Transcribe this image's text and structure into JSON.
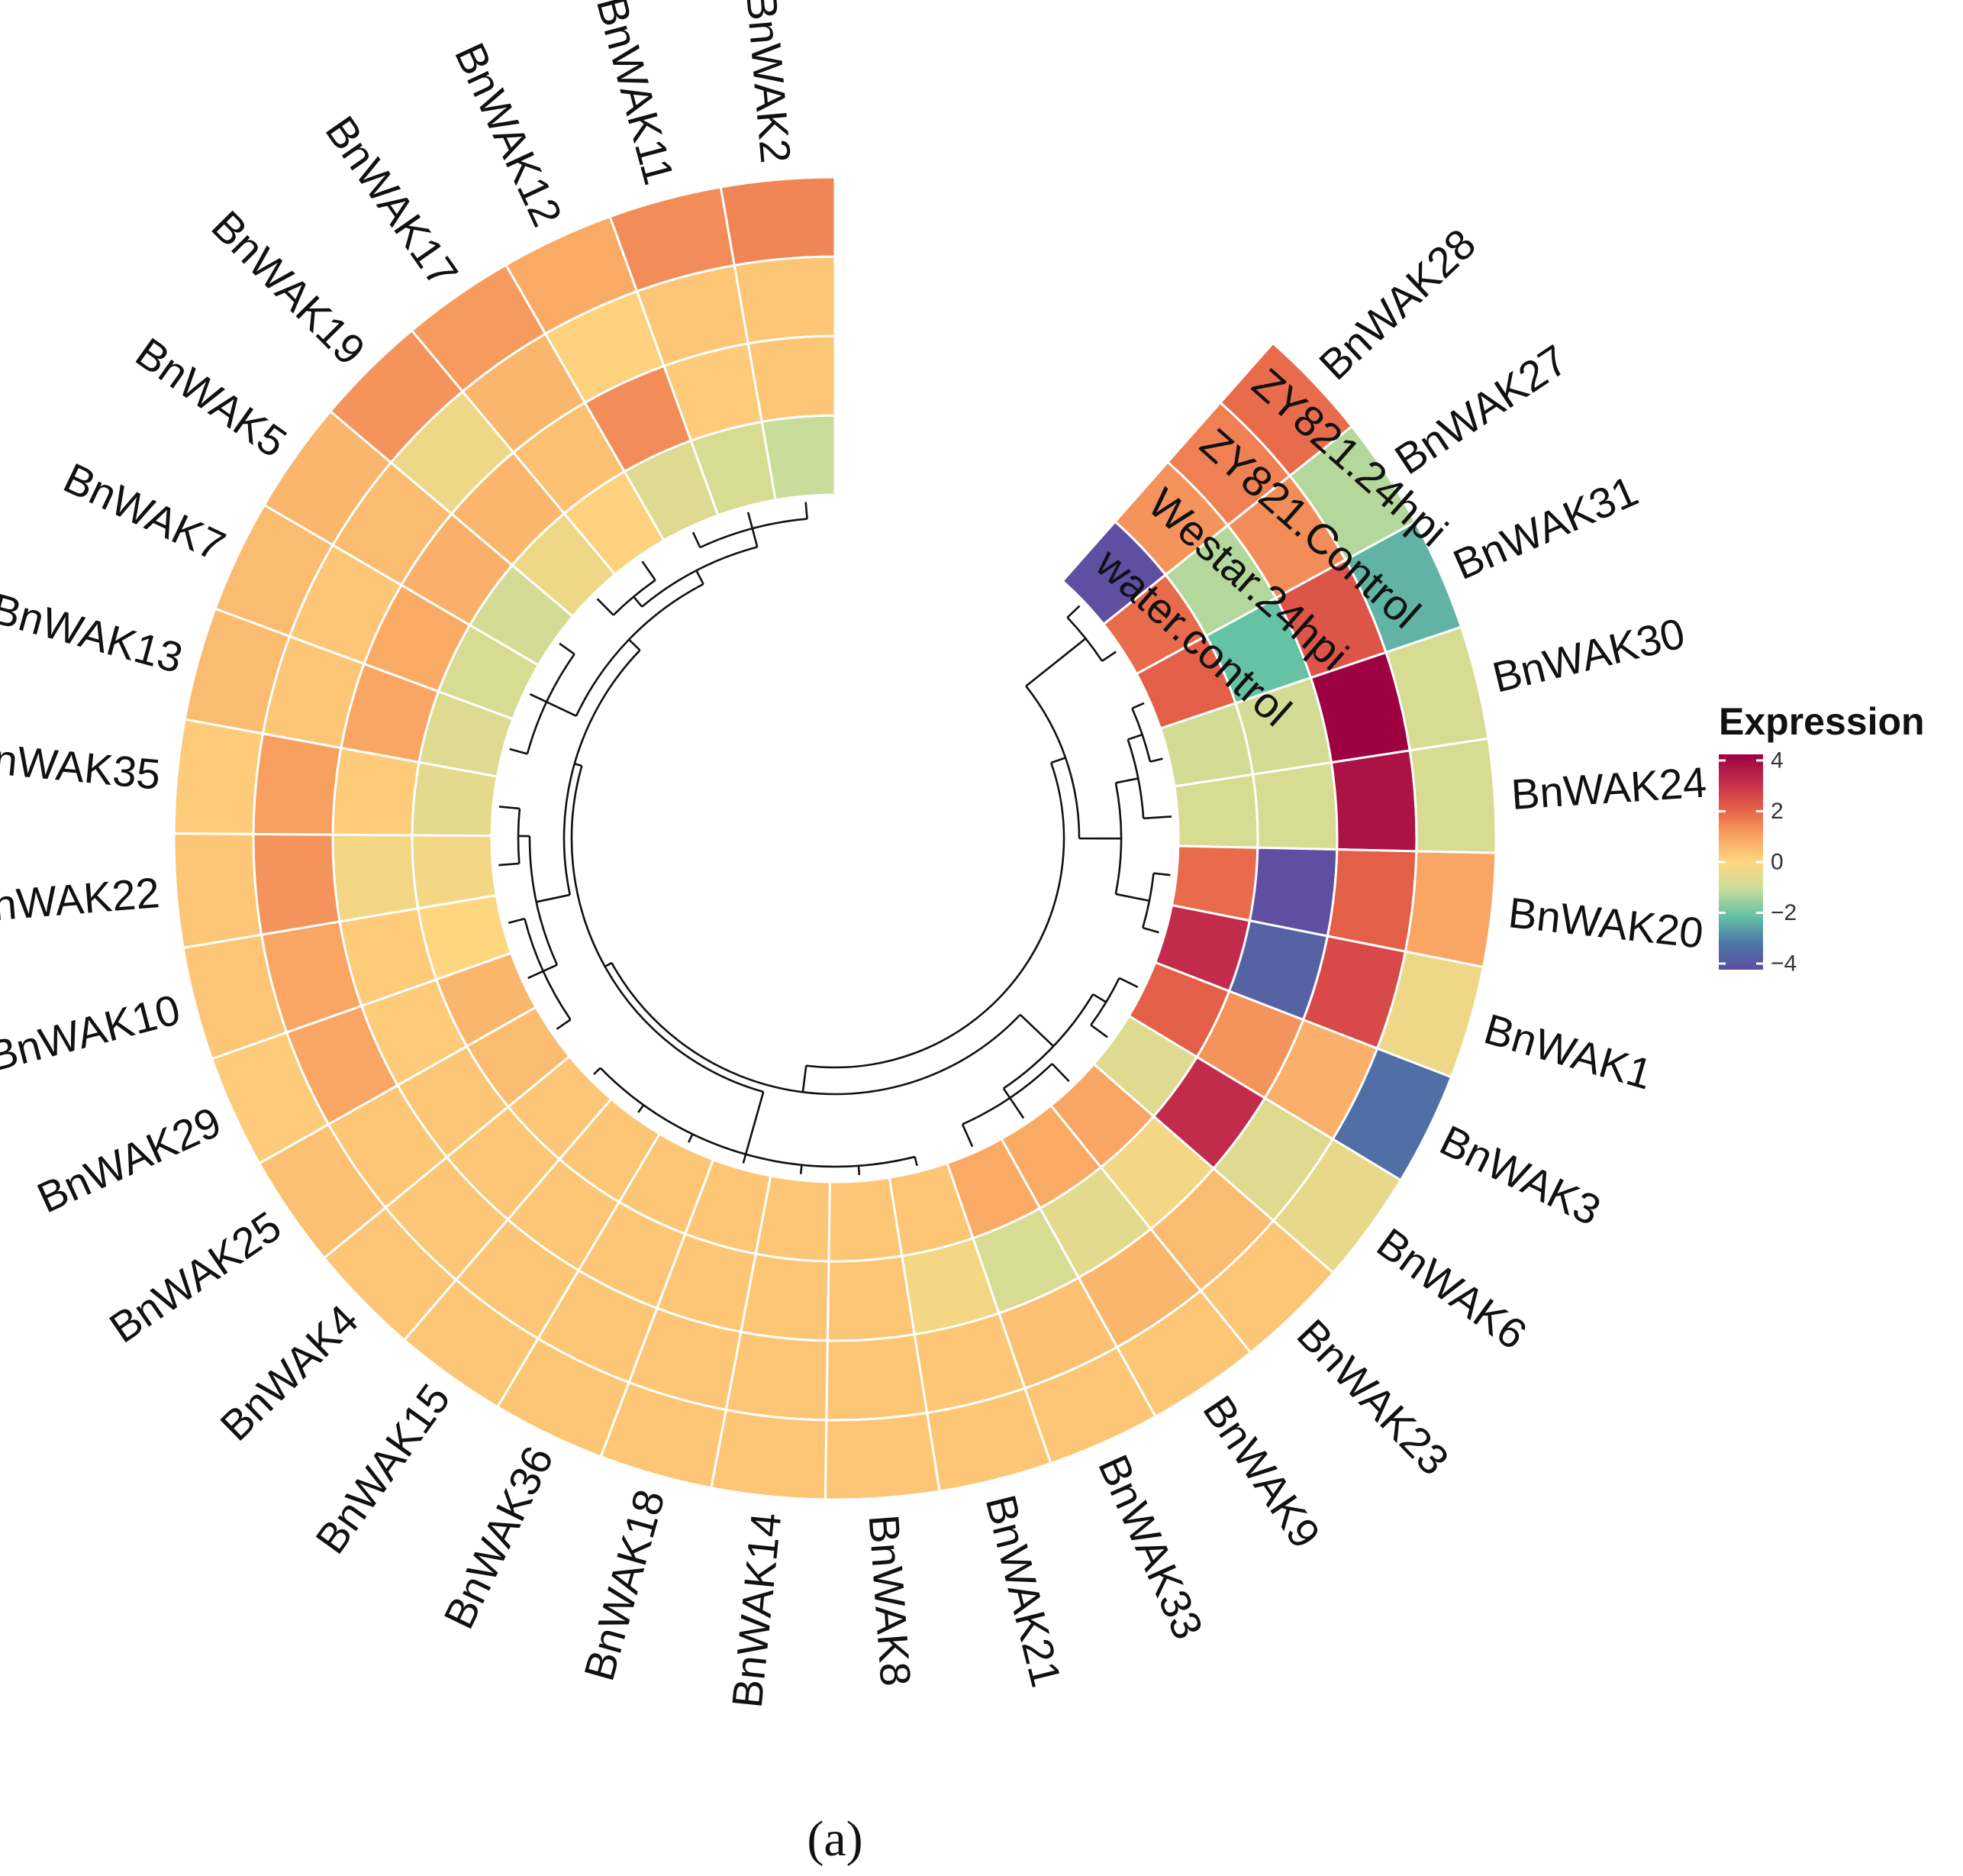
{
  "chart_data": {
    "type": "heatmap",
    "layout": "circular",
    "conditions_inner_to_outer": [
      "water.control",
      "Westar.24hpi",
      "ZY821.Control",
      "ZY821.24hpi"
    ],
    "genes": [
      {
        "name": "BnWAK28",
        "values": [
          -4.0,
          1.2,
          1.5,
          1.8
        ]
      },
      {
        "name": "BnWAK27",
        "values": [
          1.8,
          -1.2,
          1.3,
          -1.2
        ]
      },
      {
        "name": "BnWAK31",
        "values": [
          2.0,
          -2.0,
          2.2,
          -2.2
        ]
      },
      {
        "name": "BnWAK30",
        "values": [
          -0.8,
          -0.8,
          4.0,
          -0.7
        ]
      },
      {
        "name": "BnWAK24",
        "values": [
          -0.7,
          -0.7,
          3.6,
          -0.7
        ]
      },
      {
        "name": "BnWAK20",
        "values": [
          1.8,
          -4.0,
          2.0,
          0.9
        ]
      },
      {
        "name": "BnWAK1",
        "values": [
          3.0,
          -3.5,
          2.4,
          -0.3
        ]
      },
      {
        "name": "BnWAK3",
        "values": [
          2.0,
          1.2,
          0.7,
          -3.2
        ]
      },
      {
        "name": "BnWAK6",
        "values": [
          -0.6,
          3.0,
          -0.6,
          -0.4
        ]
      },
      {
        "name": "BnWAK23",
        "values": [
          0.9,
          -0.2,
          0.5,
          0.3
        ]
      },
      {
        "name": "BnWAK9",
        "values": [
          0.8,
          -0.5,
          0.6,
          0.3
        ]
      },
      {
        "name": "BnWAK33",
        "values": [
          0.8,
          -0.7,
          0.4,
          0.3
        ]
      },
      {
        "name": "BnWAK21",
        "values": [
          0.3,
          -0.2,
          0.3,
          0.3
        ]
      },
      {
        "name": "BnWAK8",
        "values": [
          0.3,
          0.3,
          0.3,
          0.3
        ]
      },
      {
        "name": "BnWAK14",
        "values": [
          0.3,
          0.3,
          0.3,
          0.3
        ]
      },
      {
        "name": "BnWAK18",
        "values": [
          0.3,
          0.3,
          0.3,
          0.3
        ]
      },
      {
        "name": "BnWAK36",
        "values": [
          0.3,
          0.3,
          0.3,
          0.3
        ]
      },
      {
        "name": "BnWAK15",
        "values": [
          0.3,
          0.3,
          0.3,
          0.3
        ]
      },
      {
        "name": "BnWAK4",
        "values": [
          0.3,
          0.3,
          0.3,
          0.3
        ]
      },
      {
        "name": "BnWAK25",
        "values": [
          0.5,
          0.3,
          0.3,
          0.4
        ]
      },
      {
        "name": "BnWAK29",
        "values": [
          0.6,
          0.2,
          0.9,
          0.2
        ]
      },
      {
        "name": "BnWAK10",
        "values": [
          0.0,
          0.2,
          0.9,
          0.3
        ]
      },
      {
        "name": "BnWAK22",
        "values": [
          -0.2,
          -0.2,
          1.2,
          0.3
        ]
      },
      {
        "name": "BnWAK35",
        "values": [
          -0.5,
          0.2,
          1.0,
          0.2
        ]
      },
      {
        "name": "BnWAK13",
        "values": [
          -0.6,
          0.9,
          0.3,
          0.5
        ]
      },
      {
        "name": "BnWAK7",
        "values": [
          -0.7,
          0.8,
          0.3,
          0.5
        ]
      },
      {
        "name": "BnWAK5",
        "values": [
          -0.8,
          0.7,
          0.5,
          0.6
        ]
      },
      {
        "name": "BnWAK19",
        "values": [
          -0.3,
          0.6,
          -0.3,
          1.2
        ]
      },
      {
        "name": "BnWAK17",
        "values": [
          0.1,
          0.4,
          0.6,
          1.1
        ]
      },
      {
        "name": "BnWAK12",
        "values": [
          -0.6,
          1.3,
          0.1,
          0.8
        ]
      },
      {
        "name": "BnWAK11",
        "values": [
          -0.7,
          0.2,
          0.3,
          1.3
        ]
      },
      {
        "name": "BnWAK2",
        "values": [
          -1.0,
          0.3,
          0.3,
          1.4
        ]
      }
    ],
    "color_scale": {
      "stops": [
        {
          "value": -4,
          "color": "#5E4FA2"
        },
        {
          "value": -3,
          "color": "#4C77A8"
        },
        {
          "value": -2,
          "color": "#66C2A5"
        },
        {
          "value": -1,
          "color": "#C8DD99"
        },
        {
          "value": 0,
          "color": "#FED680"
        },
        {
          "value": 1,
          "color": "#F8A060"
        },
        {
          "value": 2,
          "color": "#E45F47"
        },
        {
          "value": 3,
          "color": "#C32B4C"
        },
        {
          "value": 4,
          "color": "#9E0142"
        }
      ],
      "range": [
        -4,
        4
      ]
    },
    "legend": {
      "title": "Expression",
      "ticks": [
        "4",
        "2",
        "0",
        "−2",
        "−4"
      ],
      "tick_values": [
        4,
        2,
        0,
        -2,
        -4
      ],
      "position": "right"
    },
    "caption": "(a)"
  }
}
